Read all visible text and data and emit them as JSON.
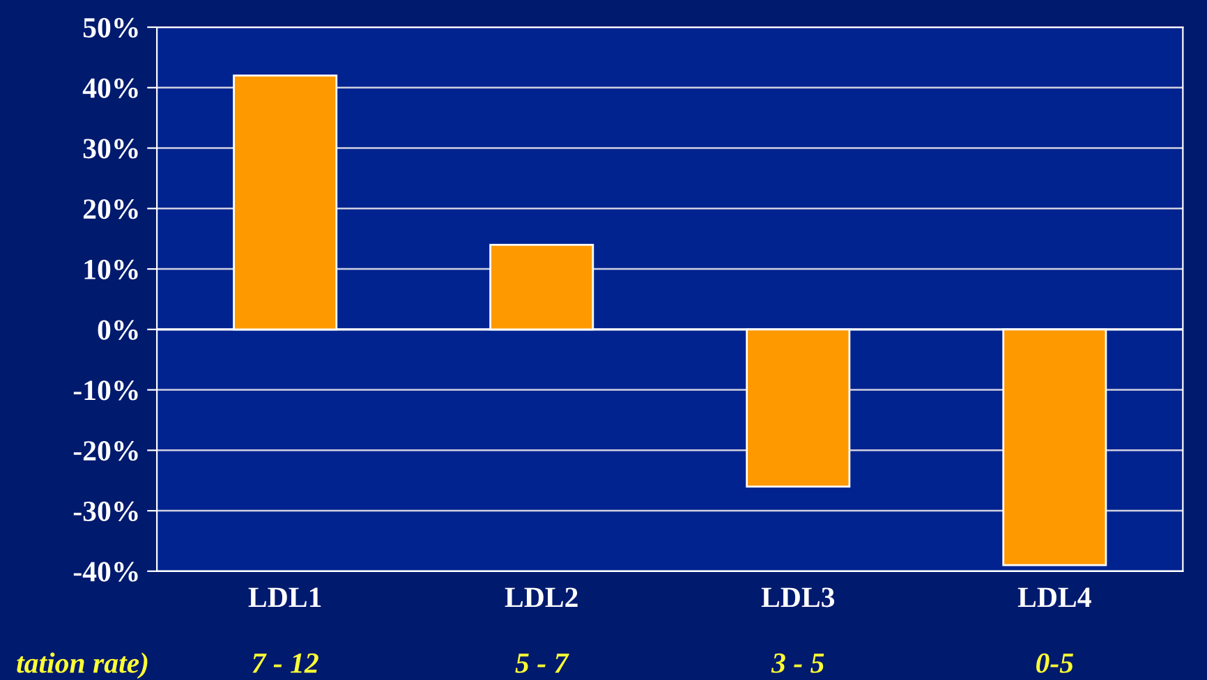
{
  "chart_data": {
    "type": "bar",
    "categories": [
      "LDL1",
      "LDL2",
      "LDL3",
      "LDL4"
    ],
    "values": [
      42,
      14,
      -26,
      -39
    ],
    "color": "#ff9900",
    "ylim": [
      -40,
      50
    ],
    "yticks": [
      {
        "value": -40,
        "label": "-40%"
      },
      {
        "value": -30,
        "label": "-30%"
      },
      {
        "value": -20,
        "label": "-20%"
      },
      {
        "value": -10,
        "label": "-10%"
      },
      {
        "value": 0,
        "label": "0%"
      },
      {
        "value": 10,
        "label": "10%"
      },
      {
        "value": 20,
        "label": "20%"
      },
      {
        "value": 30,
        "label": "30%"
      },
      {
        "value": 40,
        "label": "40%"
      },
      {
        "value": 50,
        "label": "50%"
      }
    ],
    "grid": "y",
    "annotations": [
      "tation rate)",
      "7 - 12",
      "5 - 7",
      "3 - 5",
      "0-5"
    ]
  }
}
